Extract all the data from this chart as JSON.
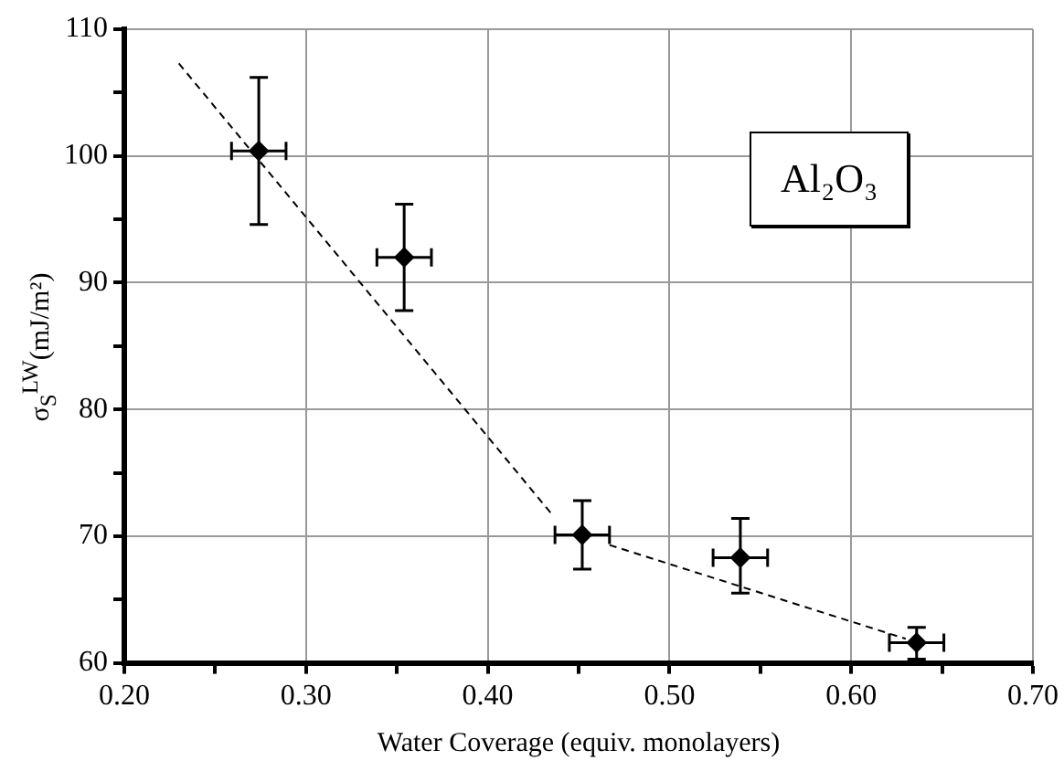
{
  "chart_data": {
    "type": "scatter",
    "xlabel": "Water Coverage (equiv. monolayers)",
    "ylabel": "σ$_{S}$$^{LW}$(mJ/m²)",
    "annotations": [
      "Al₂O₃"
    ],
    "series": [
      {
        "color": "#000000",
        "marker": "diamond",
        "x": [
          0.274,
          0.354,
          0.452,
          0.539,
          0.636
        ],
        "values": [
          100.4,
          92.0,
          70.1,
          68.3,
          61.6
        ],
        "errors": [
          [
            94.6,
            106.2
          ],
          [
            87.8,
            96.2
          ],
          [
            67.4,
            72.8
          ],
          [
            65.5,
            71.4
          ],
          [
            60.3,
            62.8
          ]
        ],
        "xerrors": [
          0.015,
          0.015,
          0.015,
          0.015,
          0.015
        ]
      },
      {
        "type": "line",
        "color": "#000000",
        "marker": "none",
        "line_style": "dashed",
        "x": [
          0.23,
          0.436
        ],
        "values": [
          107.3,
          71.6
        ]
      },
      {
        "type": "line",
        "color": "#000000",
        "marker": "none",
        "line_style": "dashed",
        "x": [
          0.467,
          0.63
        ],
        "values": [
          69.3,
          61.9
        ]
      }
    ],
    "xlim": [
      0.2,
      0.7
    ],
    "xticks": [
      {
        "value": 0.2,
        "label": "0.20"
      },
      {
        "value": 0.25,
        "label": null
      },
      {
        "value": 0.3,
        "label": "0.30"
      },
      {
        "value": 0.35,
        "label": null
      },
      {
        "value": 0.4,
        "label": "0.40"
      },
      {
        "value": 0.45,
        "label": null
      },
      {
        "value": 0.5,
        "label": "0.50"
      },
      {
        "value": 0.55,
        "label": null
      },
      {
        "value": 0.6,
        "label": "0.60"
      },
      {
        "value": 0.65,
        "label": null
      },
      {
        "value": 0.7,
        "label": "0.70"
      }
    ],
    "ylim": [
      60,
      110
    ],
    "yticks": [
      60,
      {
        "value": 65,
        "label": null
      },
      70,
      {
        "value": 75,
        "label": null
      },
      80,
      {
        "value": 85,
        "label": null
      },
      90,
      {
        "value": 95,
        "label": null
      },
      100,
      {
        "value": 105,
        "label": null
      },
      110
    ],
    "grid": true,
    "legend": false
  }
}
